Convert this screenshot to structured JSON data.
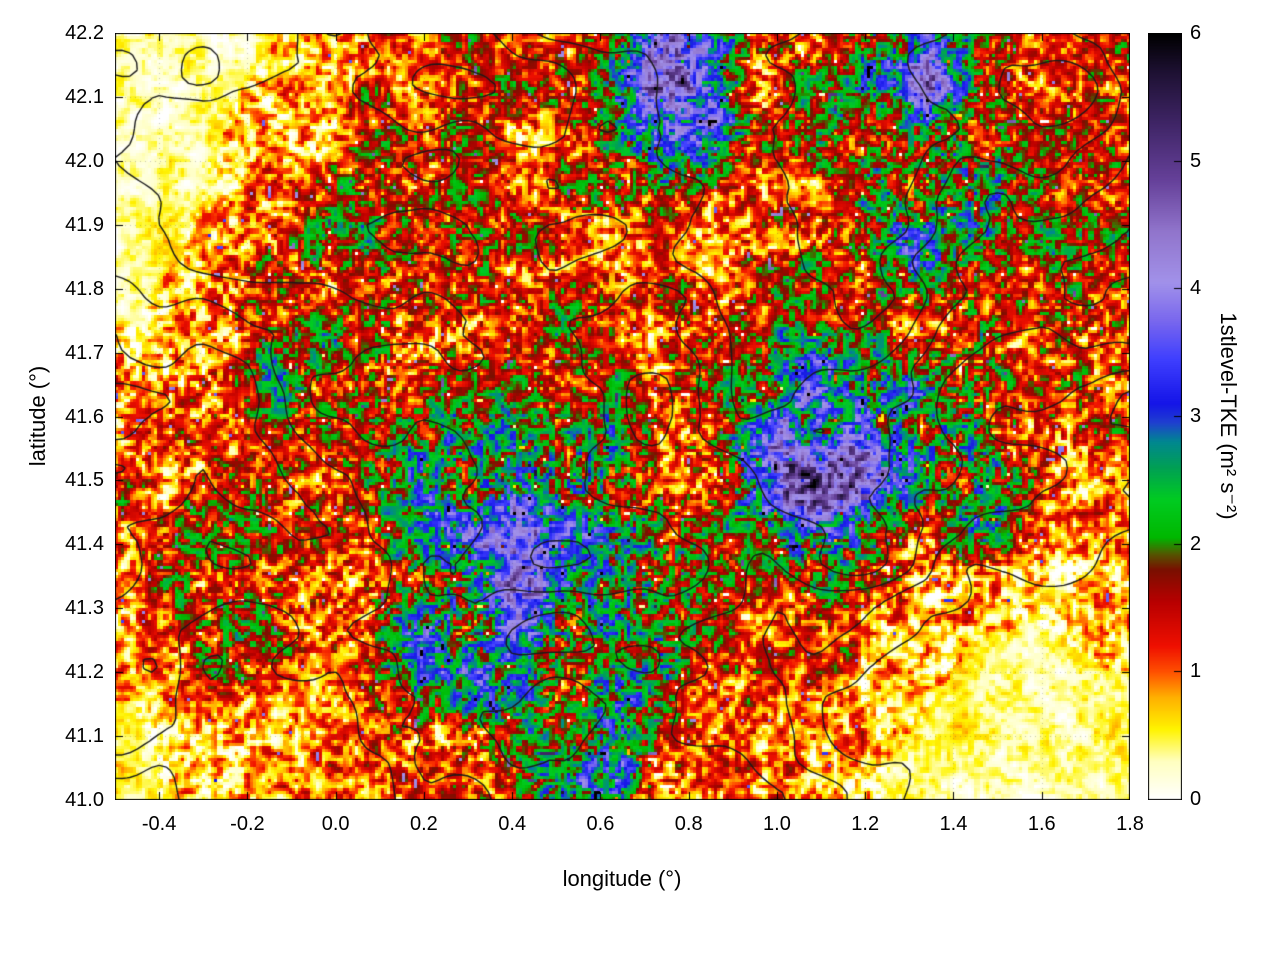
{
  "figure": {
    "background": "#ffffff",
    "frame_color": "#000000",
    "contour_color": "#1a1a1a"
  },
  "chart_data": {
    "type": "heatmap",
    "title": "",
    "xlabel": "longitude (°)",
    "ylabel": "latitude (°)",
    "colorbar_label": "1stlevel-TKE (m² s⁻²)",
    "x_range": [
      -0.5,
      1.8
    ],
    "y_range": [
      41.0,
      42.2
    ],
    "color_range": [
      0,
      6
    ],
    "x_ticks": [
      "-0.4",
      "-0.2",
      "0.0",
      "0.2",
      "0.4",
      "0.6",
      "0.8",
      "1.0",
      "1.2",
      "1.4",
      "1.6",
      "1.8"
    ],
    "y_ticks": [
      "41.0",
      "41.1",
      "41.2",
      "41.3",
      "41.4",
      "41.5",
      "41.6",
      "41.7",
      "41.8",
      "41.9",
      "42.0",
      "42.1",
      "42.2"
    ],
    "colorbar_ticks": [
      "0",
      "1",
      "2",
      "3",
      "4",
      "5",
      "6"
    ],
    "legend_position": "right-colorbar",
    "grid_lines": "dotted",
    "palette_stops": [
      [
        0.0,
        "#ffffff"
      ],
      [
        0.3,
        "#ffffc0"
      ],
      [
        0.55,
        "#fff400"
      ],
      [
        0.8,
        "#ffb000"
      ],
      [
        1.0,
        "#ff5000"
      ],
      [
        1.2,
        "#f01000"
      ],
      [
        1.55,
        "#b80000"
      ],
      [
        1.8,
        "#7a1000"
      ],
      [
        1.92,
        "#555500"
      ],
      [
        2.05,
        "#00b800"
      ],
      [
        2.35,
        "#00cc22"
      ],
      [
        2.6,
        "#00a055"
      ],
      [
        2.8,
        "#008890"
      ],
      [
        2.95,
        "#2040d0"
      ],
      [
        3.1,
        "#1515e8"
      ],
      [
        3.45,
        "#4040ff"
      ],
      [
        3.75,
        "#7a68ee"
      ],
      [
        4.05,
        "#a292ea"
      ],
      [
        4.45,
        "#9175cc"
      ],
      [
        4.85,
        "#66419a"
      ],
      [
        5.3,
        "#3f2566"
      ],
      [
        5.7,
        "#1e1133"
      ],
      [
        6.0,
        "#000000"
      ]
    ],
    "grid": {
      "note": "approximate mean 1st-level TKE (m2/s2) per 0.1 deg cell, estimated from pixel colors; rows ordered north (42.15) to south (41.05), columns west (-0.45) to east (1.75)",
      "lon_start": -0.45,
      "lon_step": 0.1,
      "lat_start": 42.15,
      "lat_step": -0.1,
      "values_rows_north_to_south": [
        [
          0.3,
          0.3,
          0.4,
          0.5,
          0.6,
          0.9,
          0.8,
          1.1,
          1.3,
          1.0,
          1.2,
          2.0,
          3.4,
          3.0,
          1.5,
          1.2,
          1.4,
          2.4,
          3.8,
          2.0,
          1.2,
          1.0,
          1.3
        ],
        [
          0.3,
          0.3,
          0.5,
          0.8,
          1.0,
          1.3,
          1.2,
          1.4,
          1.2,
          1.1,
          1.4,
          2.2,
          3.6,
          3.2,
          1.6,
          1.8,
          2.0,
          1.6,
          2.6,
          2.2,
          1.5,
          1.2,
          1.5
        ],
        [
          0.2,
          0.3,
          0.6,
          1.0,
          1.4,
          1.5,
          1.4,
          1.3,
          1.2,
          1.0,
          1.5,
          1.9,
          1.6,
          1.1,
          1.2,
          1.1,
          1.5,
          2.4,
          2.1,
          2.4,
          1.5,
          1.0,
          1.3
        ],
        [
          0.3,
          0.5,
          1.2,
          1.5,
          1.6,
          1.5,
          1.4,
          1.5,
          1.3,
          1.2,
          1.0,
          1.2,
          0.9,
          1.0,
          1.4,
          1.5,
          1.3,
          2.0,
          2.7,
          2.0,
          1.2,
          1.9,
          1.5
        ],
        [
          0.5,
          0.8,
          1.3,
          1.5,
          1.4,
          1.5,
          1.6,
          1.5,
          1.5,
          1.4,
          1.5,
          1.3,
          1.5,
          1.6,
          1.5,
          1.6,
          1.4,
          1.2,
          1.1,
          2.2,
          1.5,
          1.8,
          1.4
        ],
        [
          0.8,
          1.2,
          1.4,
          2.0,
          2.2,
          1.8,
          1.5,
          1.5,
          1.6,
          1.5,
          1.4,
          1.2,
          1.5,
          1.6,
          1.8,
          2.4,
          2.9,
          2.4,
          2.0,
          2.4,
          1.1,
          1.9,
          1.4
        ],
        [
          1.0,
          1.2,
          1.0,
          1.3,
          1.2,
          1.4,
          2.0,
          2.2,
          2.0,
          2.2,
          2.4,
          2.0,
          1.5,
          1.8,
          2.7,
          4.1,
          4.2,
          3.7,
          2.5,
          2.7,
          1.5,
          1.2,
          1.0
        ],
        [
          1.2,
          1.4,
          1.5,
          1.3,
          1.2,
          1.5,
          2.2,
          2.5,
          3.0,
          3.7,
          3.4,
          2.7,
          1.6,
          1.8,
          2.5,
          3.9,
          3.4,
          2.0,
          1.5,
          2.4,
          1.8,
          1.2,
          0.8
        ],
        [
          1.0,
          1.5,
          1.5,
          1.4,
          1.2,
          1.5,
          2.0,
          2.5,
          3.1,
          3.4,
          3.1,
          2.5,
          2.0,
          1.5,
          1.2,
          1.5,
          2.0,
          1.5,
          1.0,
          1.4,
          0.8,
          0.6,
          0.8
        ],
        [
          0.8,
          1.2,
          2.0,
          1.5,
          1.2,
          1.3,
          2.4,
          2.9,
          2.5,
          2.9,
          2.0,
          1.5,
          2.4,
          1.5,
          1.0,
          1.2,
          1.3,
          0.8,
          0.6,
          0.5,
          0.4,
          0.5,
          0.6
        ],
        [
          0.5,
          0.8,
          1.0,
          1.2,
          0.8,
          1.0,
          1.5,
          1.8,
          2.2,
          2.4,
          2.0,
          2.4,
          1.5,
          1.0,
          1.2,
          0.8,
          0.8,
          0.6,
          0.5,
          0.4,
          0.3,
          0.3,
          0.4
        ],
        [
          0.4,
          0.6,
          0.8,
          0.6,
          0.8,
          1.0,
          1.2,
          1.0,
          1.5,
          2.0,
          2.4,
          2.9,
          1.5,
          1.0,
          0.8,
          1.0,
          0.8,
          0.5,
          0.4,
          0.3,
          0.3,
          0.3,
          0.3
        ]
      ]
    },
    "contours": {
      "description": "black terrain-elevation contour lines overlaid on the TKE field; normalized elevation field estimated from contour density, rows north (42.2) to south (41.0)",
      "levels": [
        0.2,
        0.3,
        0.4,
        0.5,
        0.6,
        0.7
      ],
      "field_rows_north_to_south": [
        [
          0.5,
          0.55,
          0.5,
          0.45,
          0.5,
          0.6,
          0.7,
          0.75,
          0.7,
          0.75,
          0.7,
          0.6
        ],
        [
          0.45,
          0.5,
          0.55,
          0.5,
          0.55,
          0.65,
          0.75,
          0.8,
          0.75,
          0.8,
          0.7,
          0.55
        ],
        [
          0.4,
          0.45,
          0.55,
          0.6,
          0.5,
          0.55,
          0.6,
          0.65,
          0.7,
          0.65,
          0.55,
          0.45
        ],
        [
          0.35,
          0.4,
          0.5,
          0.55,
          0.5,
          0.45,
          0.5,
          0.6,
          0.65,
          0.6,
          0.5,
          0.4
        ],
        [
          0.3,
          0.35,
          0.45,
          0.5,
          0.55,
          0.5,
          0.45,
          0.55,
          0.6,
          0.5,
          0.4,
          0.3
        ],
        [
          0.35,
          0.4,
          0.35,
          0.45,
          0.5,
          0.55,
          0.5,
          0.45,
          0.5,
          0.4,
          0.3,
          0.2
        ],
        [
          0.3,
          0.35,
          0.4,
          0.45,
          0.5,
          0.45,
          0.5,
          0.4,
          0.35,
          0.3,
          0.2,
          0.12
        ],
        [
          0.25,
          0.3,
          0.35,
          0.4,
          0.45,
          0.5,
          0.45,
          0.35,
          0.25,
          0.15,
          0.08,
          0.05
        ],
        [
          0.2,
          0.25,
          0.3,
          0.35,
          0.4,
          0.45,
          0.4,
          0.3,
          0.15,
          0.06,
          0.03,
          0.02
        ]
      ]
    }
  }
}
